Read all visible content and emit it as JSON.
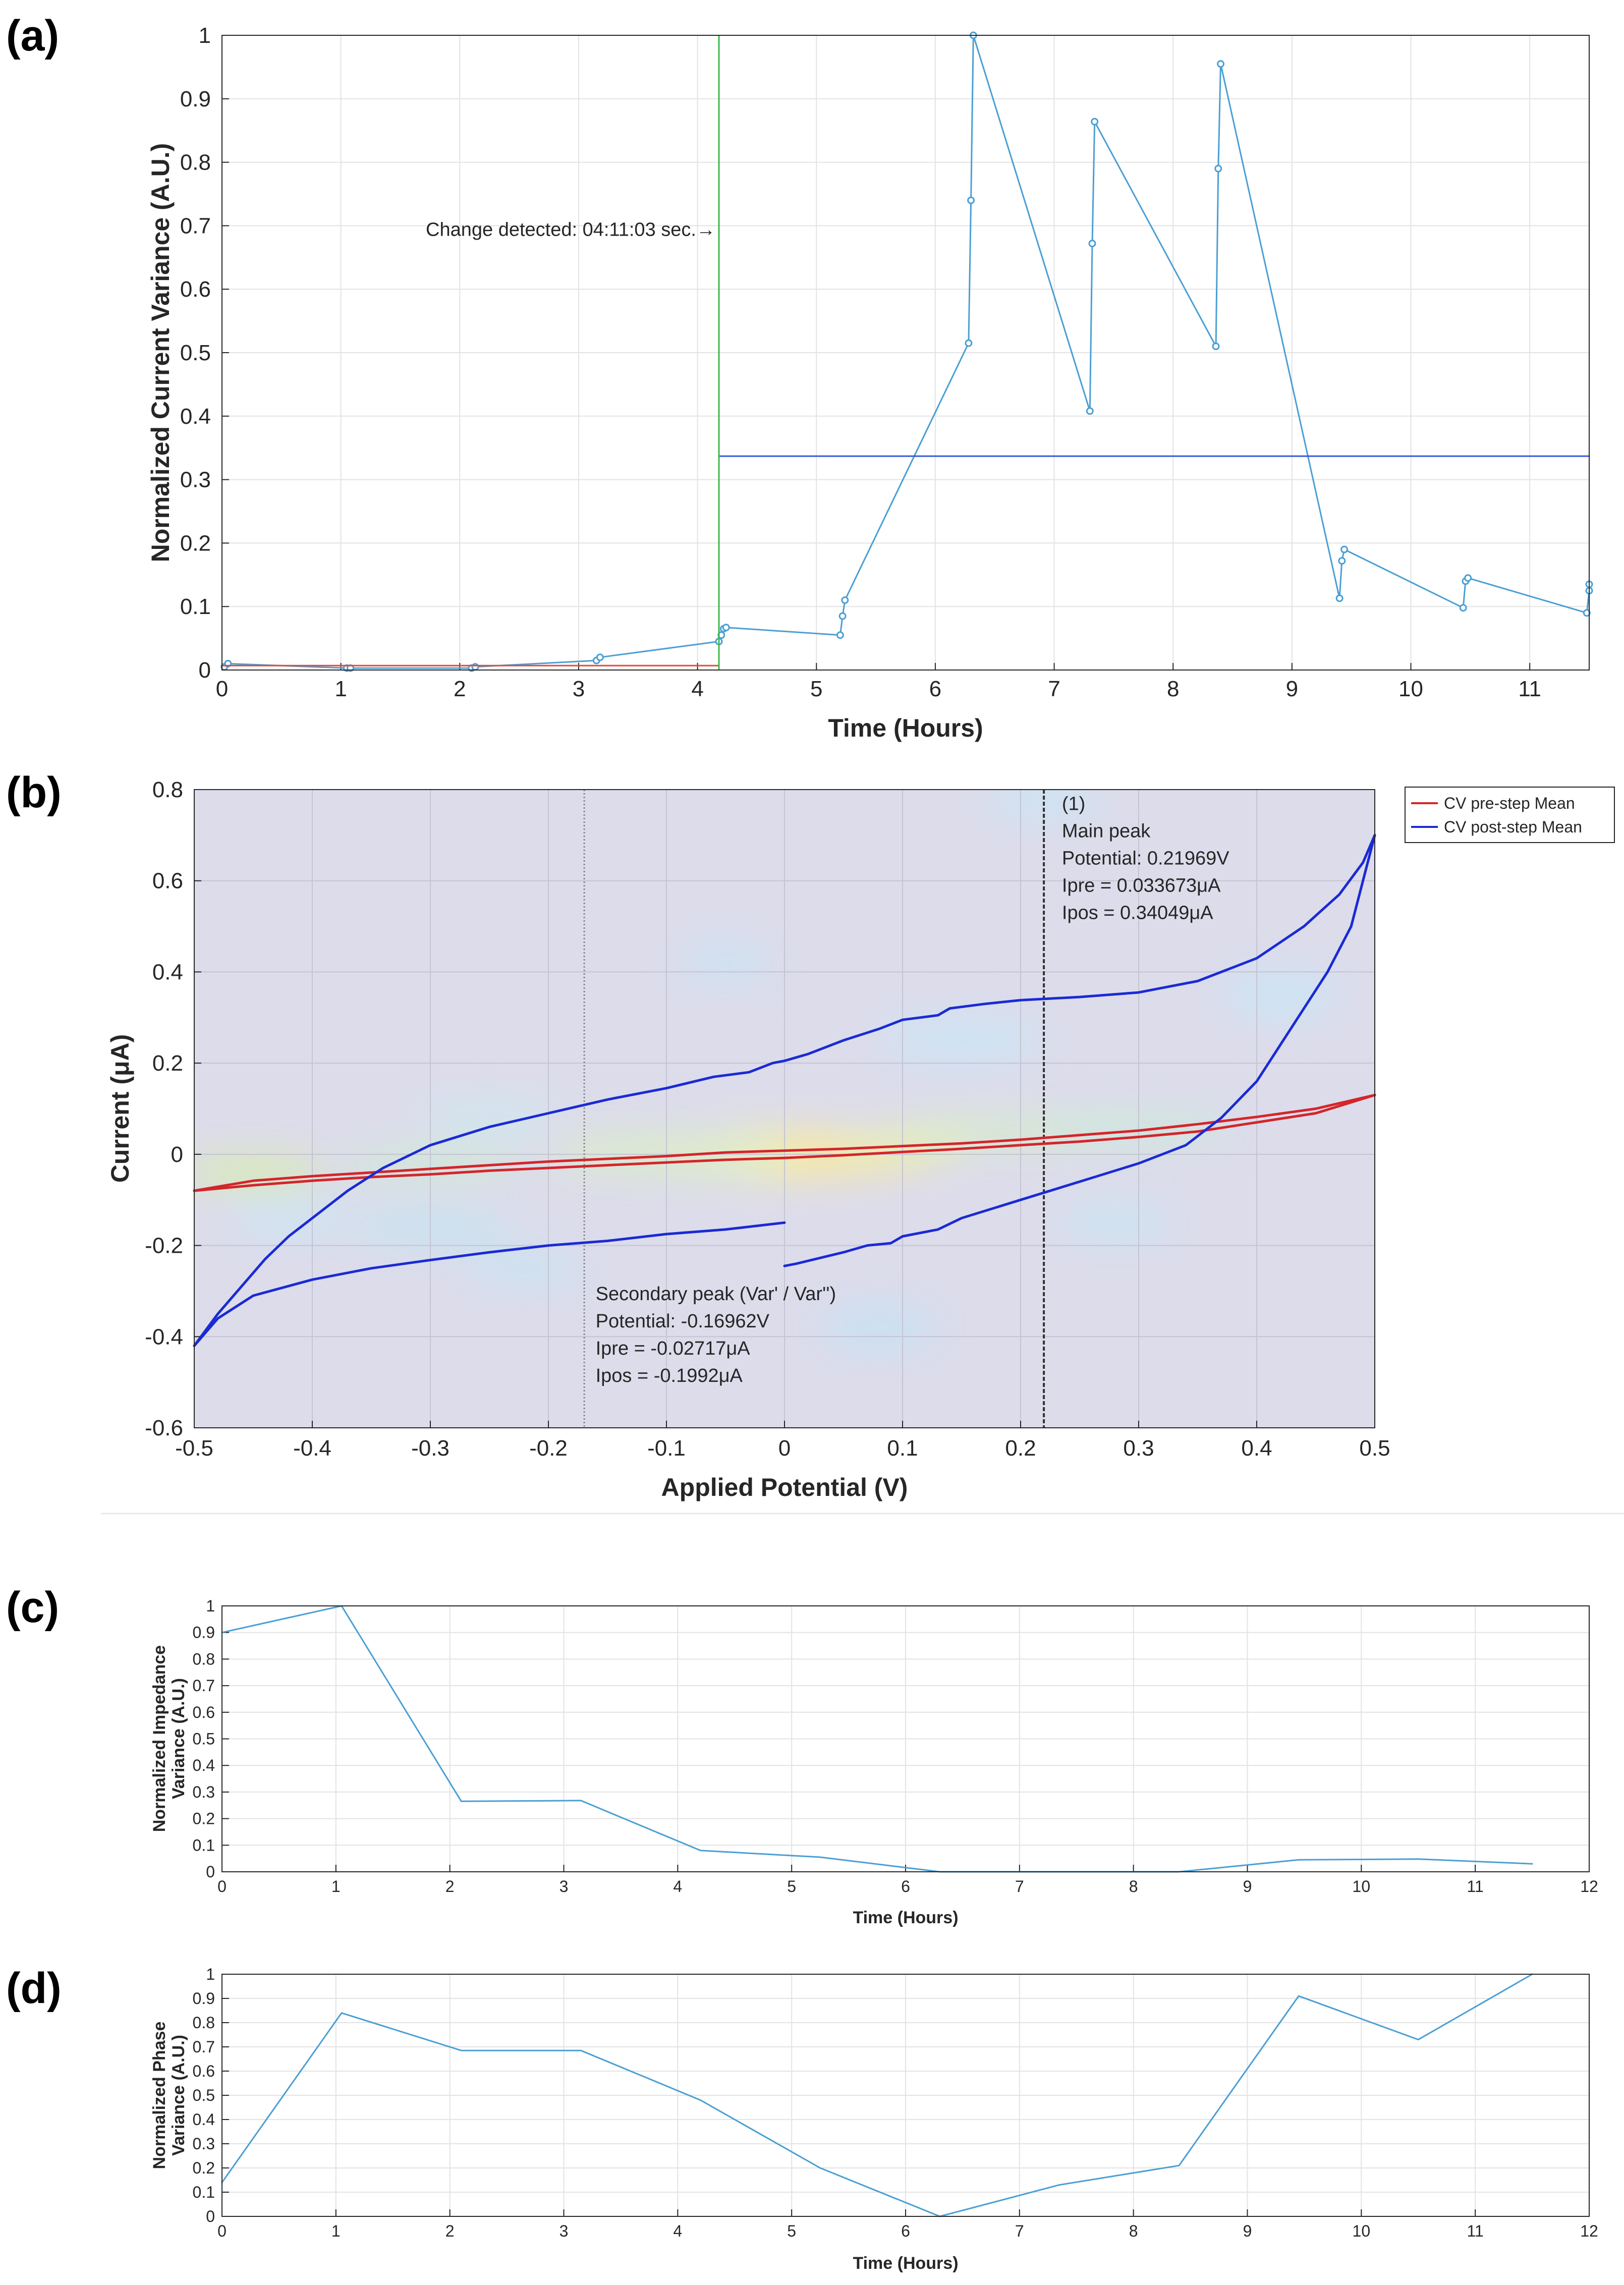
{
  "panels": {
    "a": {
      "letter": "(a)"
    },
    "b": {
      "letter": "(b)"
    },
    "c": {
      "letter": "(c)"
    },
    "d": {
      "letter": "(d)"
    }
  },
  "chart_data": [
    {
      "id": "a",
      "type": "line",
      "xlabel": "Time (Hours)",
      "ylabel": "Normalized Current Variance (A.U.)",
      "xlim": [
        0,
        11.5
      ],
      "ylim": [
        0,
        1
      ],
      "xticks": [
        0,
        1,
        2,
        3,
        4,
        5,
        6,
        7,
        8,
        9,
        10,
        11
      ],
      "yticks": [
        0,
        0.1,
        0.2,
        0.3,
        0.4,
        0.5,
        0.6,
        0.7,
        0.8,
        0.9,
        1
      ],
      "grid": true,
      "series": [
        {
          "color": "#4a9fd4",
          "markers": true,
          "x": [
            0.02,
            0.05,
            1.05,
            1.08,
            2.1,
            2.13,
            3.15,
            3.18,
            4.18,
            4.2,
            4.22,
            4.24,
            5.2,
            5.22,
            5.24,
            6.28,
            6.3,
            6.32,
            7.3,
            7.32,
            7.34,
            8.36,
            8.38,
            8.4,
            9.4,
            9.42,
            9.44,
            10.44,
            10.46,
            10.48,
            11.48,
            11.5,
            11.5
          ],
          "y": [
            0.005,
            0.01,
            0.003,
            0.003,
            0.003,
            0.005,
            0.015,
            0.02,
            0.045,
            0.055,
            0.065,
            0.067,
            0.055,
            0.085,
            0.11,
            0.515,
            0.74,
            1.0,
            0.408,
            0.672,
            0.864,
            0.51,
            0.79,
            0.955,
            0.113,
            0.172,
            0.19,
            0.098,
            0.14,
            0.145,
            0.09,
            0.125,
            0.135
          ]
        },
        {
          "color": "#e84a3a",
          "markers": false,
          "x": [
            0,
            4.18
          ],
          "y": [
            0.007,
            0.007
          ]
        },
        {
          "color": "#3a57d6",
          "markers": false,
          "x": [
            4.18,
            11.5
          ],
          "y": [
            0.337,
            0.337
          ]
        }
      ],
      "change_line": {
        "x": 4.18,
        "color": "#3cb84a"
      },
      "annotation": {
        "text": "Change detected: 04:11:03 sec.→",
        "x": 4.15,
        "y": 0.695,
        "color": "#2fa832"
      }
    },
    {
      "id": "b",
      "type": "line",
      "xlabel": "Applied Potential (V)",
      "ylabel": "Current (μA)",
      "xlim": [
        -0.5,
        0.5
      ],
      "ylim": [
        -0.6,
        0.8
      ],
      "xticks": [
        -0.5,
        -0.4,
        -0.3,
        -0.2,
        -0.1,
        0,
        0.1,
        0.2,
        0.3,
        0.4,
        0.5
      ],
      "yticks": [
        -0.6,
        -0.4,
        -0.2,
        0,
        0.2,
        0.4,
        0.6,
        0.8
      ],
      "grid": true,
      "background_heatmap": true,
      "legend_position": "top-right, outside",
      "series": [
        {
          "name": "CV pre-step Mean",
          "color": "#d4252a",
          "x": [
            -0.5,
            -0.45,
            -0.4,
            -0.35,
            -0.3,
            -0.25,
            -0.2,
            -0.15,
            -0.1,
            -0.05,
            0,
            0.05,
            0.1,
            0.15,
            0.2,
            0.25,
            0.3,
            0.35,
            0.4,
            0.45,
            0.5
          ],
          "y": [
            -0.08,
            -0.058,
            -0.048,
            -0.04,
            -0.032,
            -0.024,
            -0.016,
            -0.01,
            -0.004,
            0.004,
            0.008,
            0.012,
            0.018,
            0.024,
            0.032,
            0.042,
            0.052,
            0.066,
            0.082,
            0.1,
            0.13
          ]
        },
        {
          "name": "",
          "color": "#d4252a",
          "x": [
            0.5,
            0.45,
            0.4,
            0.35,
            0.3,
            0.25,
            0.2,
            0.15,
            0.1,
            0.05,
            0,
            -0.05,
            -0.1,
            -0.15,
            -0.2,
            -0.25,
            -0.3,
            -0.35,
            -0.4,
            -0.45,
            -0.5
          ],
          "y": [
            0.13,
            0.09,
            0.07,
            0.05,
            0.038,
            0.028,
            0.02,
            0.012,
            0.005,
            -0.002,
            -0.008,
            -0.012,
            -0.018,
            -0.024,
            -0.03,
            -0.036,
            -0.044,
            -0.05,
            -0.058,
            -0.068,
            -0.08
          ]
        },
        {
          "name": "CV post-step Mean",
          "color": "#1a2ad4",
          "x": [
            -0.5,
            -0.48,
            -0.46,
            -0.44,
            -0.42,
            -0.4,
            -0.37,
            -0.34,
            -0.3,
            -0.25,
            -0.2,
            -0.15,
            -0.1,
            -0.06,
            -0.03,
            -0.01,
            0.0,
            0.02,
            0.05,
            0.08,
            0.1,
            0.13,
            0.14,
            0.17,
            0.2,
            0.25,
            0.3,
            0.35,
            0.4,
            0.44,
            0.47,
            0.49,
            0.5
          ],
          "y": [
            -0.42,
            -0.35,
            -0.29,
            -0.23,
            -0.18,
            -0.14,
            -0.08,
            -0.03,
            0.02,
            0.06,
            0.09,
            0.12,
            0.145,
            0.17,
            0.18,
            0.2,
            0.205,
            0.22,
            0.25,
            0.275,
            0.295,
            0.305,
            0.32,
            0.33,
            0.338,
            0.345,
            0.355,
            0.38,
            0.43,
            0.5,
            0.57,
            0.64,
            0.7
          ]
        },
        {
          "name": "",
          "color": "#1a2ad4",
          "x": [
            0.5,
            0.49,
            0.48,
            0.46,
            0.44,
            0.42,
            0.4,
            0.37,
            0.34,
            0.3,
            0.25,
            0.2,
            0.15,
            0.13,
            0.1,
            0.09,
            0.07,
            0.05,
            0.01,
            0.0
          ],
          "y": [
            0.7,
            0.6,
            0.5,
            0.4,
            0.32,
            0.24,
            0.16,
            0.08,
            0.02,
            -0.02,
            -0.06,
            -0.1,
            -0.14,
            -0.165,
            -0.18,
            -0.195,
            -0.2,
            -0.215,
            -0.24,
            -0.245
          ]
        },
        {
          "name": "",
          "color": "#1a2ad4",
          "x": [
            0.0,
            -0.05,
            -0.1,
            -0.15,
            -0.2,
            -0.25,
            -0.3,
            -0.35,
            -0.4,
            -0.45,
            -0.48,
            -0.5
          ],
          "y": [
            -0.15,
            -0.165,
            -0.175,
            -0.19,
            -0.2,
            -0.215,
            -0.232,
            -0.25,
            -0.275,
            -0.31,
            -0.36,
            -0.42
          ]
        }
      ],
      "vlines": [
        {
          "x": -0.16962,
          "style": "dotted",
          "color": "#888888"
        },
        {
          "x": 0.21969,
          "style": "dashed",
          "color": "#333333"
        }
      ],
      "annotations": [
        {
          "lines": [
            "(1)",
            "Main peak",
            "Potential: 0.21969V",
            "Ipre = 0.033673μA",
            "Ipos = 0.34049μA"
          ],
          "x": 0.235,
          "y": 0.755
        },
        {
          "lines": [
            "Secondary peak (Var' / Var'')",
            "Potential: -0.16962V",
            "Ipre = -0.02717μA",
            "Ipos = -0.1992μA"
          ],
          "x": -0.16,
          "y": -0.32
        }
      ]
    },
    {
      "id": "c",
      "type": "line",
      "xlabel": "Time (Hours)",
      "ylabel": [
        "Normalized Impedance",
        "Variance (A.U.)"
      ],
      "xlim": [
        0,
        12
      ],
      "ylim": [
        0,
        1
      ],
      "xticks": [
        0,
        1,
        2,
        3,
        4,
        5,
        6,
        7,
        8,
        9,
        10,
        11,
        12
      ],
      "yticks": [
        0,
        0.1,
        0.2,
        0.3,
        0.4,
        0.5,
        0.6,
        0.7,
        0.8,
        0.9,
        1
      ],
      "grid": true,
      "series": [
        {
          "color": "#4a9fd4",
          "x": [
            0,
            1.05,
            2.1,
            3.15,
            4.2,
            5.25,
            6.3,
            7.35,
            8.4,
            9.45,
            10.5,
            11.5
          ],
          "y": [
            0.9,
            1.0,
            0.265,
            0.268,
            0.08,
            0.055,
            0.0,
            0.0,
            0.0,
            0.045,
            0.048,
            0.03
          ]
        }
      ]
    },
    {
      "id": "d",
      "type": "line",
      "xlabel": "Time (Hours)",
      "ylabel": [
        "Normalized Phase",
        "Variance (A.U.)"
      ],
      "xlim": [
        0,
        12
      ],
      "ylim": [
        0,
        1
      ],
      "xticks": [
        0,
        1,
        2,
        3,
        4,
        5,
        6,
        7,
        8,
        9,
        10,
        11,
        12
      ],
      "yticks": [
        0,
        0.1,
        0.2,
        0.3,
        0.4,
        0.5,
        0.6,
        0.7,
        0.8,
        0.9,
        1
      ],
      "grid": true,
      "series": [
        {
          "color": "#4a9fd4",
          "x": [
            0,
            1.05,
            2.1,
            3.15,
            4.2,
            5.25,
            6.3,
            7.35,
            8.4,
            9.45,
            10.5,
            11.5
          ],
          "y": [
            0.14,
            0.84,
            0.685,
            0.685,
            0.48,
            0.2,
            0.0,
            0.13,
            0.21,
            0.91,
            0.73,
            1.0
          ]
        }
      ]
    }
  ]
}
